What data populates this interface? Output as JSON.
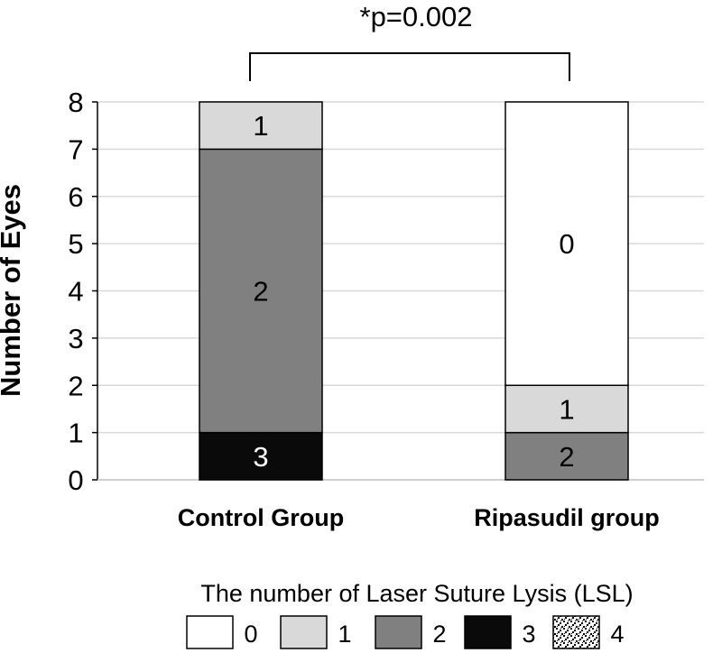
{
  "chart_data": {
    "type": "bar",
    "stacked": true,
    "categories": [
      "Control Group",
      "Ripasudil group"
    ],
    "series": [
      {
        "name": "0",
        "values": [
          0,
          6
        ]
      },
      {
        "name": "1",
        "values": [
          1,
          1
        ]
      },
      {
        "name": "2",
        "values": [
          6,
          1
        ]
      },
      {
        "name": "3",
        "values": [
          1,
          0
        ]
      },
      {
        "name": "4",
        "values": [
          0,
          0
        ]
      }
    ],
    "segment_labels": [
      "0",
      "1",
      "2",
      "3",
      "4"
    ],
    "ylabel": "Number of Eyes",
    "ylim": [
      0,
      8
    ],
    "yticks": [
      0,
      1,
      2,
      3,
      4,
      5,
      6,
      7,
      8
    ],
    "grid": true,
    "significance": "*p=0.002",
    "legend": {
      "title": "The number of Laser Suture Lysis (LSL)",
      "placement": "bottom",
      "items": [
        "0",
        "1",
        "2",
        "3",
        "4"
      ]
    },
    "colors": {
      "0": "#ffffff",
      "1": "#d9d9d9",
      "2": "#808080",
      "3": "#0a0a0a",
      "4": "pattern-speckle"
    }
  }
}
